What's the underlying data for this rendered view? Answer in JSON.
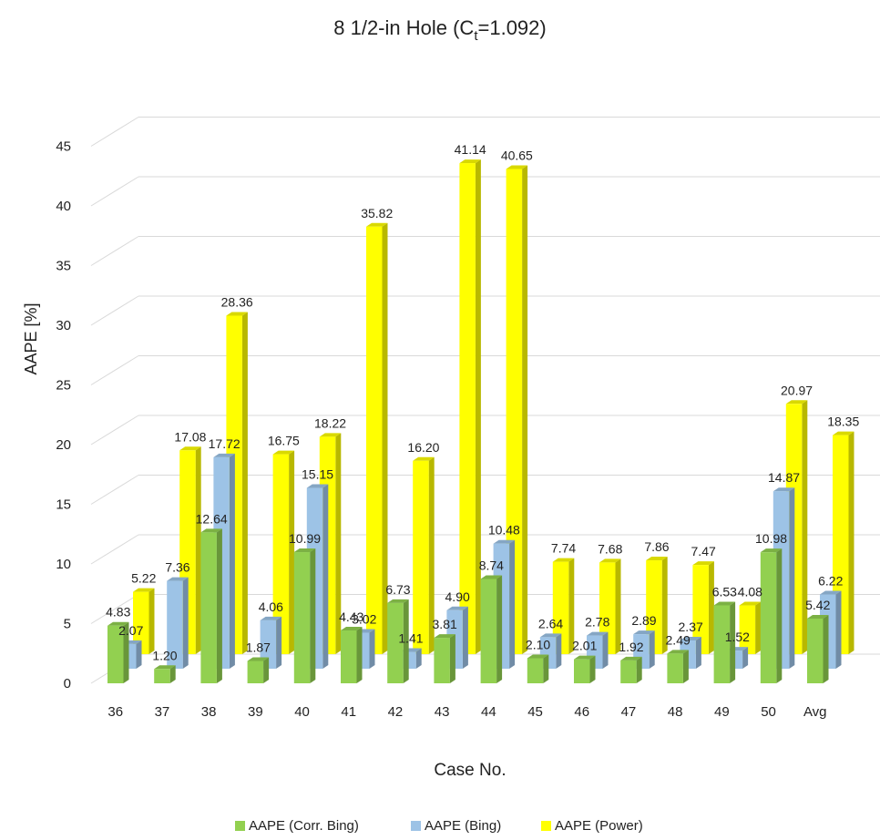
{
  "chart_data": {
    "type": "bar",
    "title_main": "8 1/2-in Hole (C",
    "title_sub": "t",
    "title_tail": "=1.092)",
    "xlabel": "Case No.",
    "ylabel": "AAPE [%]",
    "ylim": [
      0,
      45
    ],
    "yticks": [
      0,
      5,
      10,
      15,
      20,
      25,
      30,
      35,
      40,
      45
    ],
    "grid": true,
    "legend_position": "bottom",
    "categories": [
      "36",
      "37",
      "38",
      "39",
      "40",
      "41",
      "42",
      "43",
      "44",
      "45",
      "46",
      "47",
      "48",
      "49",
      "50",
      "Avg"
    ],
    "series": [
      {
        "name": "AAPE (Corr. Bing)",
        "color": "#92D050",
        "values": [
          4.83,
          1.2,
          12.64,
          1.87,
          10.99,
          4.43,
          6.73,
          3.81,
          8.74,
          2.1,
          2.01,
          1.92,
          2.49,
          6.53,
          10.98,
          5.42
        ]
      },
      {
        "name": "AAPE (Bing)",
        "color": "#9DC3E6",
        "values": [
          2.07,
          7.36,
          17.72,
          4.06,
          15.15,
          3.02,
          1.41,
          4.9,
          10.48,
          2.64,
          2.78,
          2.89,
          2.37,
          1.52,
          14.87,
          6.22
        ]
      },
      {
        "name": "AAPE (Power)",
        "color": "#FFFF00",
        "values": [
          5.22,
          17.08,
          28.36,
          16.75,
          18.22,
          35.82,
          16.2,
          41.14,
          40.65,
          7.74,
          7.68,
          7.86,
          7.47,
          4.08,
          20.97,
          18.35
        ]
      }
    ]
  }
}
